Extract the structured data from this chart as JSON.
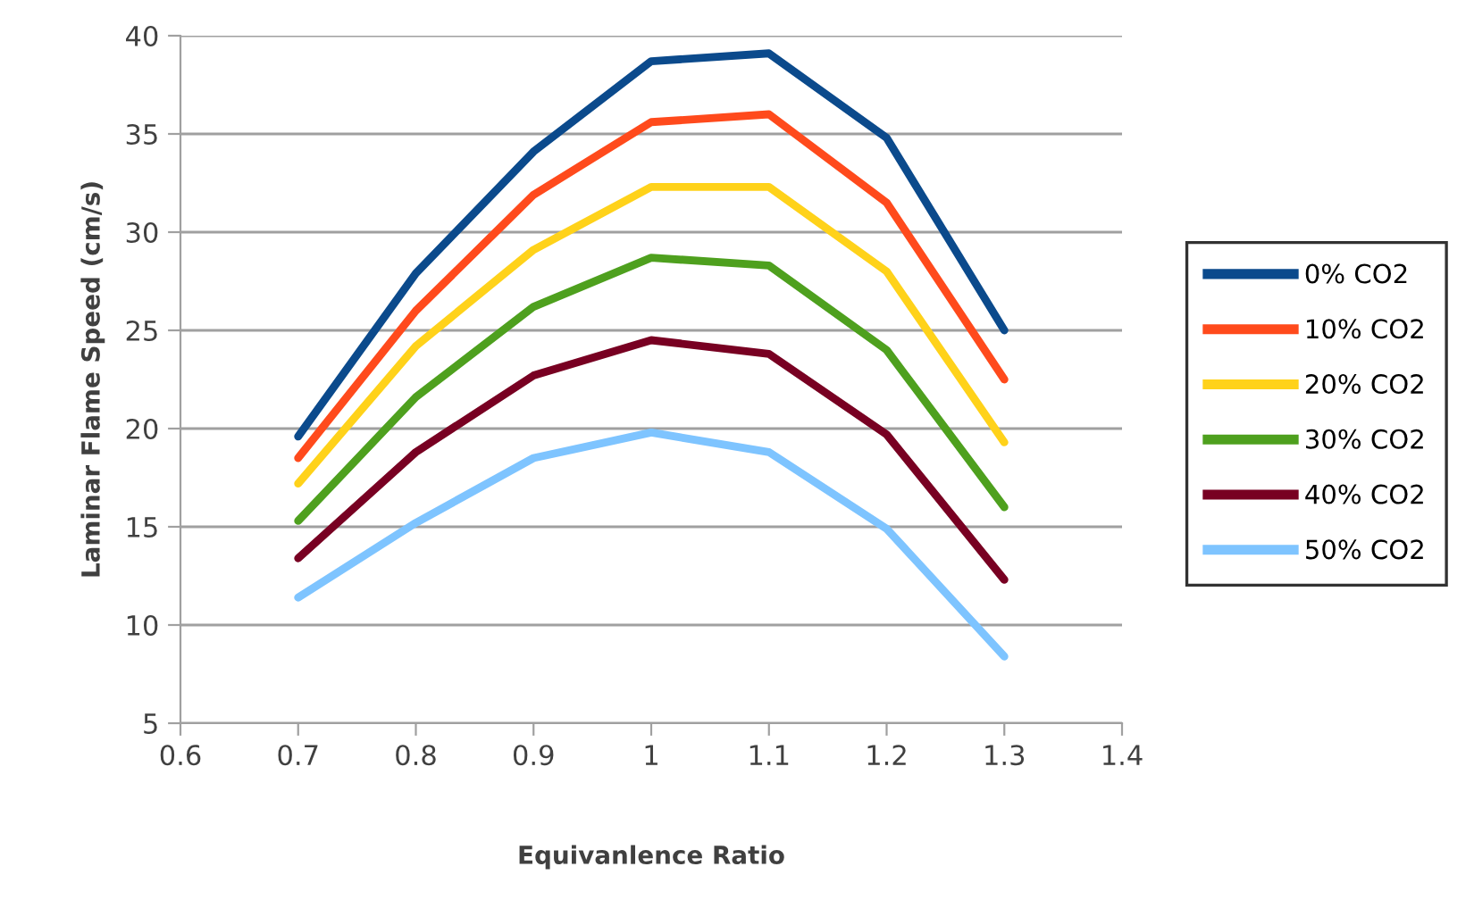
{
  "chart_data": {
    "type": "line",
    "xlabel": "Equivanlence Ratio",
    "ylabel": "Laminar Flame Speed (cm/s)",
    "x": [
      0.7,
      0.8,
      0.9,
      1.0,
      1.1,
      1.2,
      1.3
    ],
    "series": [
      {
        "name": "0% CO2",
        "color": "#0b4a8c",
        "values": [
          19.6,
          27.9,
          34.1,
          38.7,
          39.1,
          34.8,
          25.0
        ]
      },
      {
        "name": "10% CO2",
        "color": "#ff4a1c",
        "values": [
          18.5,
          26.0,
          31.9,
          35.6,
          36.0,
          31.5,
          22.5
        ]
      },
      {
        "name": "20% CO2",
        "color": "#ffd21a",
        "values": [
          17.2,
          24.2,
          29.1,
          32.3,
          32.3,
          28.0,
          19.3
        ]
      },
      {
        "name": "30% CO2",
        "color": "#4ea01e",
        "values": [
          15.3,
          21.6,
          26.2,
          28.7,
          28.3,
          24.0,
          16.0
        ]
      },
      {
        "name": "40% CO2",
        "color": "#780022",
        "values": [
          13.4,
          18.8,
          22.7,
          24.5,
          23.8,
          19.7,
          12.3
        ]
      },
      {
        "name": "50% CO2",
        "color": "#7ec4ff",
        "values": [
          11.4,
          15.2,
          18.5,
          19.8,
          18.8,
          14.9,
          8.4
        ]
      }
    ],
    "xlim": [
      0.6,
      1.4
    ],
    "xticks": [
      0.6,
      0.7,
      0.8,
      0.9,
      1,
      1.1,
      1.2,
      1.3,
      1.4
    ],
    "ylim": [
      5,
      40
    ],
    "yticks": [
      5,
      10,
      15,
      20,
      25,
      30,
      35,
      40
    ],
    "grid": "y",
    "legend": "right",
    "marker": "none",
    "line_style": "solid"
  }
}
